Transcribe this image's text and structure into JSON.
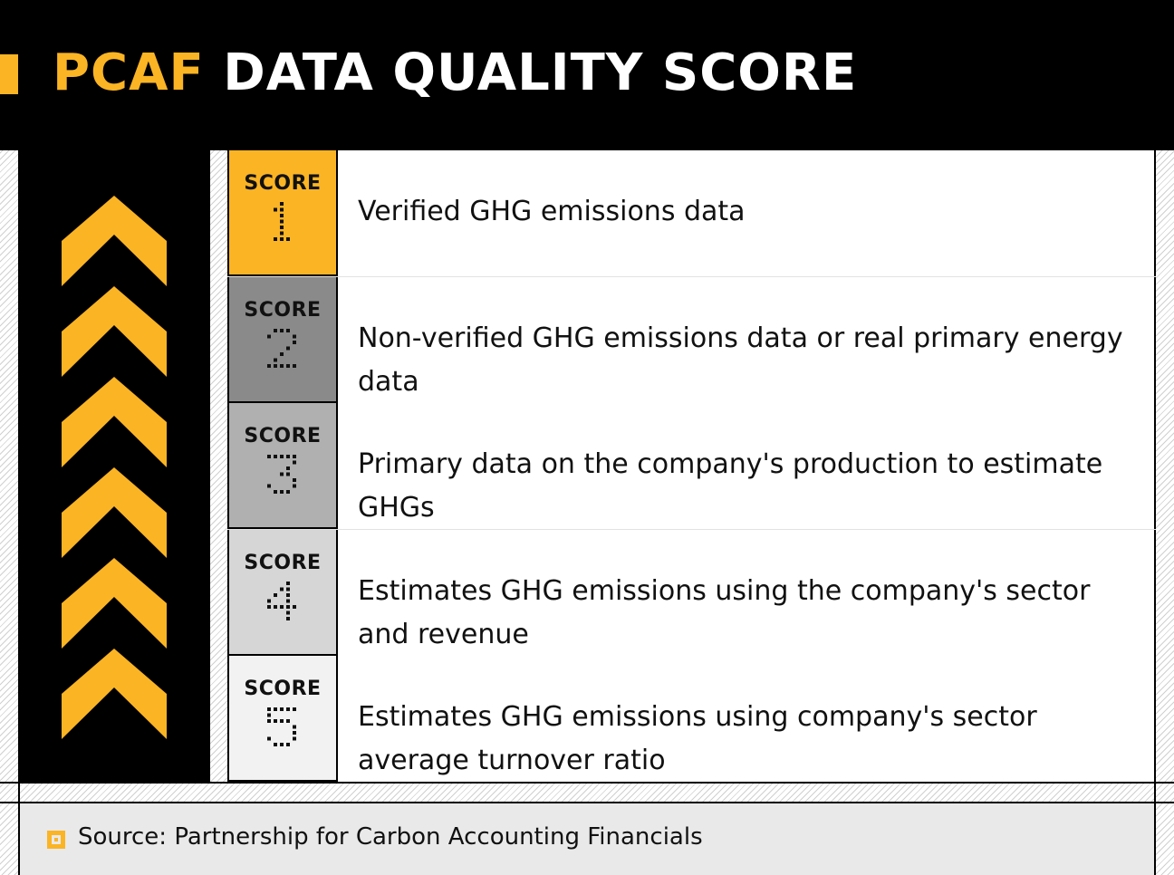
{
  "header": {
    "title_accent": "PCAF",
    "title_rest": " DATA QUALITY SCORE",
    "accent_color": "#FBB424"
  },
  "chevron_icon_count": 6,
  "scores": [
    {
      "label": "SCORE",
      "digit": "1",
      "color": "#FBB424",
      "description": "Verified GHG emissions data"
    },
    {
      "label": "SCORE",
      "digit": "2",
      "color": "#8a8a8a",
      "description": "Non-verified GHG emissions data or real primary energy data"
    },
    {
      "label": "SCORE",
      "digit": "3",
      "color": "#b0b0b0",
      "description": "Primary data on the company's production to estimate GHGs"
    },
    {
      "label": "SCORE",
      "digit": "4",
      "color": "#d6d6d6",
      "description": "Estimates GHG emissions using the company's sector and revenue"
    },
    {
      "label": "SCORE",
      "digit": "5",
      "color": "#f2f2f2",
      "description": "Estimates GHG emissions using company's sector average turnover ratio"
    }
  ],
  "footer": {
    "source": "Source: Partnership for Carbon Accounting Financials",
    "icon": "square-dot-icon"
  }
}
